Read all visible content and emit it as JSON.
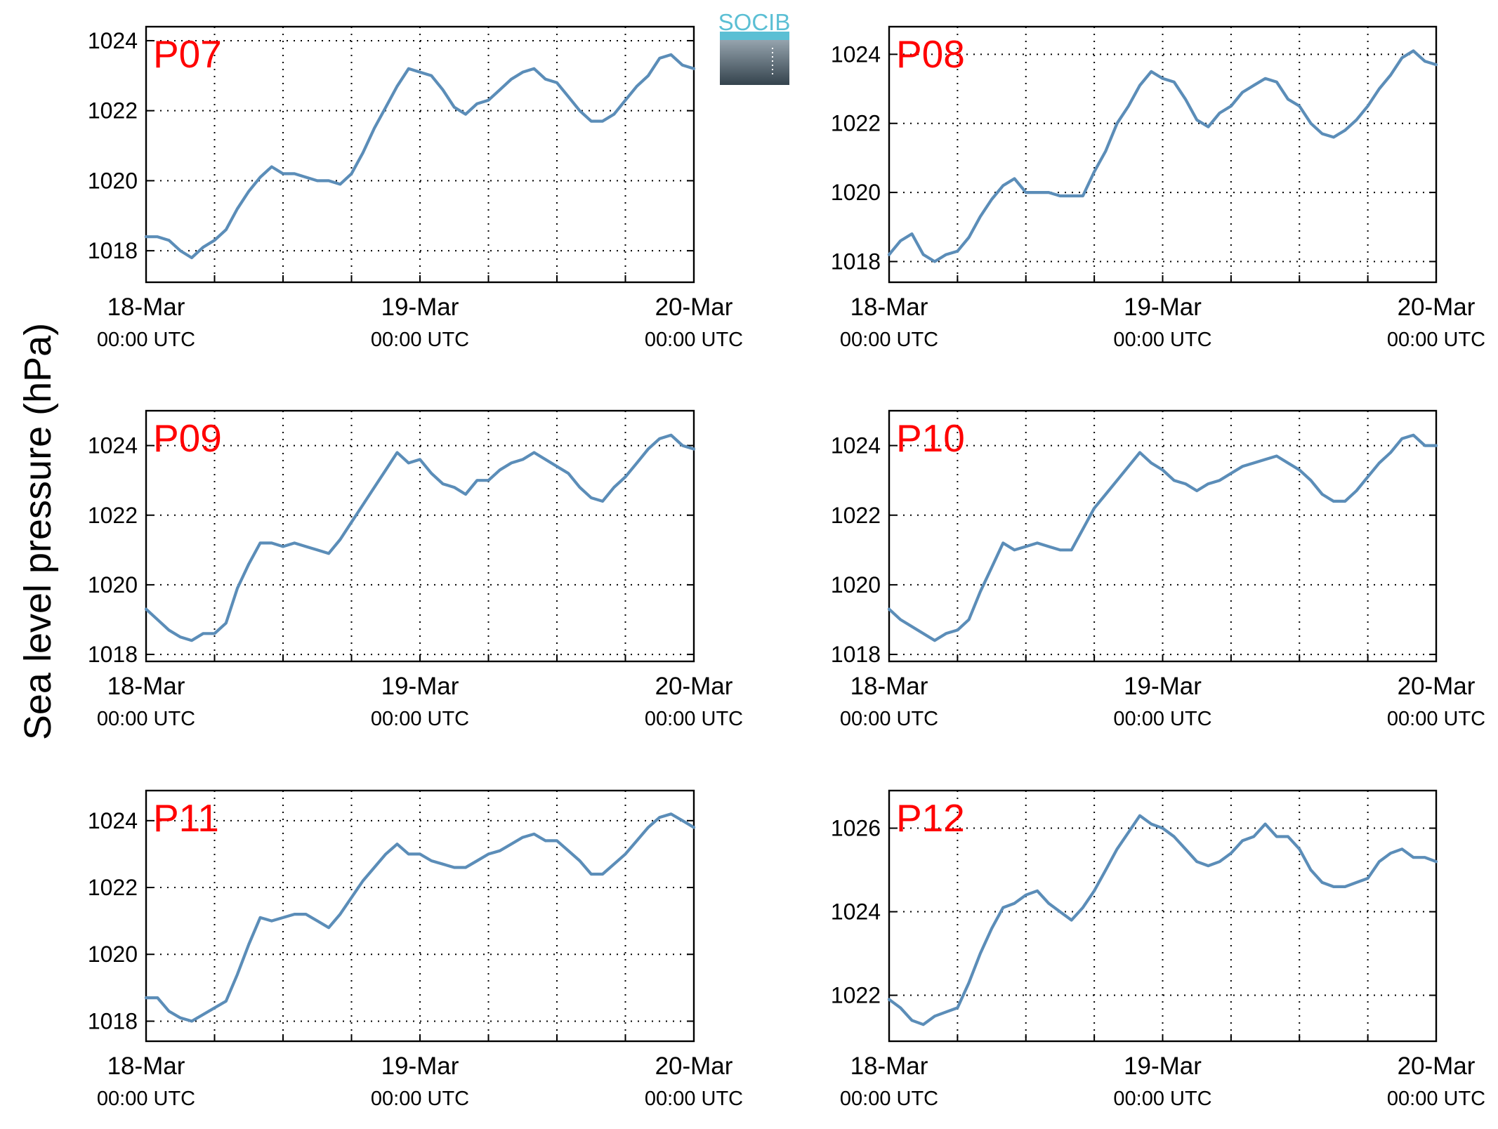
{
  "figure": {
    "ylabel": "Sea level pressure (hPa)",
    "logo": {
      "text": "SOCIB",
      "text_color": "#5bbfd4",
      "top_color": "#9aa8b2",
      "bottom_color": "#34434d"
    },
    "line_color": "#5b8db8",
    "label_color": "#ff0000"
  },
  "chart_data": [
    {
      "type": "line",
      "label": "P07",
      "x_tick_labels": [
        {
          "line1": "18-Mar",
          "line2": "00:00 UTC"
        },
        {
          "line1": "19-Mar",
          "line2": "00:00 UTC"
        },
        {
          "line1": "20-Mar",
          "line2": "00:00 UTC"
        }
      ],
      "x_range_hours": [
        0,
        48
      ],
      "x_grid_step_hours": 6,
      "yticks": [
        1018,
        1020,
        1022,
        1024
      ],
      "ylim": [
        1017.1,
        1024.4
      ],
      "grid": true,
      "x_hours": [
        0,
        1,
        2,
        3,
        4,
        5,
        6,
        7,
        8,
        9,
        10,
        11,
        12,
        13,
        14,
        15,
        16,
        17,
        18,
        19,
        20,
        21,
        22,
        23,
        24,
        25,
        26,
        27,
        28,
        29,
        30,
        31,
        32,
        33,
        34,
        35,
        36,
        37,
        38,
        39,
        40,
        41,
        42,
        43,
        44,
        45,
        46,
        47,
        48
      ],
      "values": [
        1018.4,
        1018.4,
        1018.3,
        1018.0,
        1017.8,
        1018.1,
        1018.3,
        1018.6,
        1019.2,
        1019.7,
        1020.1,
        1020.4,
        1020.2,
        1020.2,
        1020.1,
        1020.0,
        1020.0,
        1019.9,
        1020.2,
        1020.8,
        1021.5,
        1022.1,
        1022.7,
        1023.2,
        1023.1,
        1023.0,
        1022.6,
        1022.1,
        1021.9,
        1022.2,
        1022.3,
        1022.6,
        1022.9,
        1023.1,
        1023.2,
        1022.9,
        1022.8,
        1022.4,
        1022.0,
        1021.7,
        1021.7,
        1021.9,
        1022.3,
        1022.7,
        1023.0,
        1023.5,
        1023.6,
        1023.3,
        1023.2
      ]
    },
    {
      "type": "line",
      "label": "P08",
      "x_tick_labels": [
        {
          "line1": "18-Mar",
          "line2": "00:00 UTC"
        },
        {
          "line1": "19-Mar",
          "line2": "00:00 UTC"
        },
        {
          "line1": "20-Mar",
          "line2": "00:00 UTC"
        }
      ],
      "x_range_hours": [
        0,
        48
      ],
      "x_grid_step_hours": 6,
      "yticks": [
        1018,
        1020,
        1022,
        1024
      ],
      "ylim": [
        1017.4,
        1024.8
      ],
      "grid": true,
      "x_hours": [
        0,
        1,
        2,
        3,
        4,
        5,
        6,
        7,
        8,
        9,
        10,
        11,
        12,
        13,
        14,
        15,
        16,
        17,
        18,
        19,
        20,
        21,
        22,
        23,
        24,
        25,
        26,
        27,
        28,
        29,
        30,
        31,
        32,
        33,
        34,
        35,
        36,
        37,
        38,
        39,
        40,
        41,
        42,
        43,
        44,
        45,
        46,
        47,
        48
      ],
      "values": [
        1018.2,
        1018.6,
        1018.8,
        1018.2,
        1018.0,
        1018.2,
        1018.3,
        1018.7,
        1019.3,
        1019.8,
        1020.2,
        1020.4,
        1020.0,
        1020.0,
        1020.0,
        1019.9,
        1019.9,
        1019.9,
        1020.6,
        1021.2,
        1022.0,
        1022.5,
        1023.1,
        1023.5,
        1023.3,
        1023.2,
        1022.7,
        1022.1,
        1021.9,
        1022.3,
        1022.5,
        1022.9,
        1023.1,
        1023.3,
        1023.2,
        1022.7,
        1022.5,
        1022.0,
        1021.7,
        1021.6,
        1021.8,
        1022.1,
        1022.5,
        1023.0,
        1023.4,
        1023.9,
        1024.1,
        1023.8,
        1023.7
      ]
    },
    {
      "type": "line",
      "label": "P09",
      "x_tick_labels": [
        {
          "line1": "18-Mar",
          "line2": "00:00 UTC"
        },
        {
          "line1": "19-Mar",
          "line2": "00:00 UTC"
        },
        {
          "line1": "20-Mar",
          "line2": "00:00 UTC"
        }
      ],
      "x_range_hours": [
        0,
        48
      ],
      "x_grid_step_hours": 6,
      "yticks": [
        1018,
        1020,
        1022,
        1024
      ],
      "ylim": [
        1017.8,
        1025.0
      ],
      "grid": true,
      "x_hours": [
        0,
        1,
        2,
        3,
        4,
        5,
        6,
        7,
        8,
        9,
        10,
        11,
        12,
        13,
        14,
        15,
        16,
        17,
        18,
        19,
        20,
        21,
        22,
        23,
        24,
        25,
        26,
        27,
        28,
        29,
        30,
        31,
        32,
        33,
        34,
        35,
        36,
        37,
        38,
        39,
        40,
        41,
        42,
        43,
        44,
        45,
        46,
        47,
        48
      ],
      "values": [
        1019.3,
        1019.0,
        1018.7,
        1018.5,
        1018.4,
        1018.6,
        1018.6,
        1018.9,
        1019.9,
        1020.6,
        1021.2,
        1021.2,
        1021.1,
        1021.2,
        1021.1,
        1021.0,
        1020.9,
        1021.3,
        1021.8,
        1022.3,
        1022.8,
        1023.3,
        1023.8,
        1023.5,
        1023.6,
        1023.2,
        1022.9,
        1022.8,
        1022.6,
        1023.0,
        1023.0,
        1023.3,
        1023.5,
        1023.6,
        1023.8,
        1023.6,
        1023.4,
        1023.2,
        1022.8,
        1022.5,
        1022.4,
        1022.8,
        1023.1,
        1023.5,
        1023.9,
        1024.2,
        1024.3,
        1024.0,
        1023.9
      ]
    },
    {
      "type": "line",
      "label": "P10",
      "x_tick_labels": [
        {
          "line1": "18-Mar",
          "line2": "00:00 UTC"
        },
        {
          "line1": "19-Mar",
          "line2": "00:00 UTC"
        },
        {
          "line1": "20-Mar",
          "line2": "00:00 UTC"
        }
      ],
      "x_range_hours": [
        0,
        48
      ],
      "x_grid_step_hours": 6,
      "yticks": [
        1018,
        1020,
        1022,
        1024
      ],
      "ylim": [
        1017.8,
        1025.0
      ],
      "grid": true,
      "x_hours": [
        0,
        1,
        2,
        3,
        4,
        5,
        6,
        7,
        8,
        9,
        10,
        11,
        12,
        13,
        14,
        15,
        16,
        17,
        18,
        19,
        20,
        21,
        22,
        23,
        24,
        25,
        26,
        27,
        28,
        29,
        30,
        31,
        32,
        33,
        34,
        35,
        36,
        37,
        38,
        39,
        40,
        41,
        42,
        43,
        44,
        45,
        46,
        47,
        48
      ],
      "values": [
        1019.3,
        1019.0,
        1018.8,
        1018.6,
        1018.4,
        1018.6,
        1018.7,
        1019.0,
        1019.8,
        1020.5,
        1021.2,
        1021.0,
        1021.1,
        1021.2,
        1021.1,
        1021.0,
        1021.0,
        1021.6,
        1022.2,
        1022.6,
        1023.0,
        1023.4,
        1023.8,
        1023.5,
        1023.3,
        1023.0,
        1022.9,
        1022.7,
        1022.9,
        1023.0,
        1023.2,
        1023.4,
        1023.5,
        1023.6,
        1023.7,
        1023.5,
        1023.3,
        1023.0,
        1022.6,
        1022.4,
        1022.4,
        1022.7,
        1023.1,
        1023.5,
        1023.8,
        1024.2,
        1024.3,
        1024.0,
        1024.0
      ]
    },
    {
      "type": "line",
      "label": "P11",
      "x_tick_labels": [
        {
          "line1": "18-Mar",
          "line2": "00:00 UTC"
        },
        {
          "line1": "19-Mar",
          "line2": "00:00 UTC"
        },
        {
          "line1": "20-Mar",
          "line2": "00:00 UTC"
        }
      ],
      "x_range_hours": [
        0,
        48
      ],
      "x_grid_step_hours": 6,
      "yticks": [
        1018,
        1020,
        1022,
        1024
      ],
      "ylim": [
        1017.4,
        1024.9
      ],
      "grid": true,
      "x_hours": [
        0,
        1,
        2,
        3,
        4,
        5,
        6,
        7,
        8,
        9,
        10,
        11,
        12,
        13,
        14,
        15,
        16,
        17,
        18,
        19,
        20,
        21,
        22,
        23,
        24,
        25,
        26,
        27,
        28,
        29,
        30,
        31,
        32,
        33,
        34,
        35,
        36,
        37,
        38,
        39,
        40,
        41,
        42,
        43,
        44,
        45,
        46,
        47,
        48
      ],
      "values": [
        1018.7,
        1018.7,
        1018.3,
        1018.1,
        1018.0,
        1018.2,
        1018.4,
        1018.6,
        1019.4,
        1020.3,
        1021.1,
        1021.0,
        1021.1,
        1021.2,
        1021.2,
        1021.0,
        1020.8,
        1021.2,
        1021.7,
        1022.2,
        1022.6,
        1023.0,
        1023.3,
        1023.0,
        1023.0,
        1022.8,
        1022.7,
        1022.6,
        1022.6,
        1022.8,
        1023.0,
        1023.1,
        1023.3,
        1023.5,
        1023.6,
        1023.4,
        1023.4,
        1023.1,
        1022.8,
        1022.4,
        1022.4,
        1022.7,
        1023.0,
        1023.4,
        1023.8,
        1024.1,
        1024.2,
        1024.0,
        1023.8
      ]
    },
    {
      "type": "line",
      "label": "P12",
      "x_tick_labels": [
        {
          "line1": "18-Mar",
          "line2": "00:00 UTC"
        },
        {
          "line1": "19-Mar",
          "line2": "00:00 UTC"
        },
        {
          "line1": "20-Mar",
          "line2": "00:00 UTC"
        }
      ],
      "x_range_hours": [
        0,
        48
      ],
      "x_grid_step_hours": 6,
      "yticks": [
        1022,
        1024,
        1026
      ],
      "ylim": [
        1020.9,
        1026.9
      ],
      "grid": true,
      "x_hours": [
        0,
        1,
        2,
        3,
        4,
        5,
        6,
        7,
        8,
        9,
        10,
        11,
        12,
        13,
        14,
        15,
        16,
        17,
        18,
        19,
        20,
        21,
        22,
        23,
        24,
        25,
        26,
        27,
        28,
        29,
        30,
        31,
        32,
        33,
        34,
        35,
        36,
        37,
        38,
        39,
        40,
        41,
        42,
        43,
        44,
        45,
        46,
        47,
        48
      ],
      "values": [
        1021.9,
        1021.7,
        1021.4,
        1021.3,
        1021.5,
        1021.6,
        1021.7,
        1022.3,
        1023.0,
        1023.6,
        1024.1,
        1024.2,
        1024.4,
        1024.5,
        1024.2,
        1024.0,
        1023.8,
        1024.1,
        1024.5,
        1025.0,
        1025.5,
        1025.9,
        1026.3,
        1026.1,
        1026.0,
        1025.8,
        1025.5,
        1025.2,
        1025.1,
        1025.2,
        1025.4,
        1025.7,
        1025.8,
        1026.1,
        1025.8,
        1025.8,
        1025.5,
        1025.0,
        1024.7,
        1024.6,
        1024.6,
        1024.7,
        1024.8,
        1025.2,
        1025.4,
        1025.5,
        1025.3,
        1025.3,
        1025.2
      ]
    }
  ]
}
